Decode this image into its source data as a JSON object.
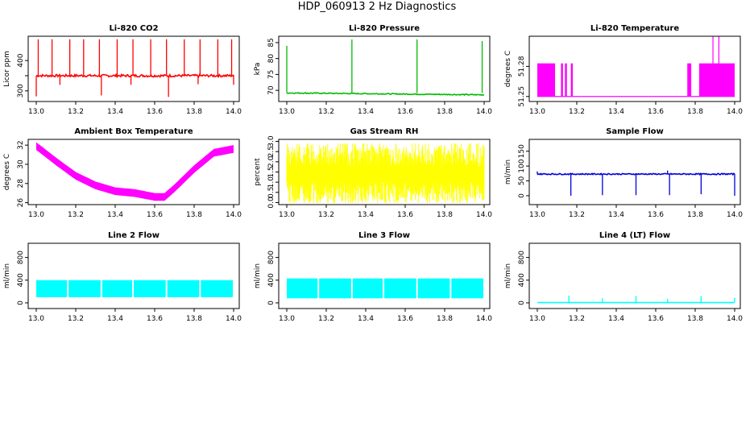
{
  "title": "HDP_060913  2 Hz Diagnostics",
  "chart_data": [
    {
      "type": "line",
      "title": "Li-820 CO2",
      "ylabel": "Licor ppm",
      "color": "#ff0000",
      "xlim": [
        13.0,
        14.0
      ],
      "ylim": [
        265,
        480
      ],
      "xticks": [
        "13.0",
        "13.2",
        "13.4",
        "13.6",
        "13.8",
        "14.0"
      ],
      "yticks": [
        300,
        350,
        400
      ],
      "yticklabels": [
        "300",
        "",
        "400"
      ],
      "baseline": 350,
      "noise": 4,
      "spikes_up": [
        [
          13.01,
          470
        ],
        [
          13.08,
          470
        ],
        [
          13.17,
          470
        ],
        [
          13.24,
          470
        ],
        [
          13.32,
          470
        ],
        [
          13.41,
          470
        ],
        [
          13.49,
          470
        ],
        [
          13.58,
          470
        ],
        [
          13.66,
          470
        ],
        [
          13.75,
          470
        ],
        [
          13.83,
          470
        ],
        [
          13.92,
          470
        ],
        [
          13.99,
          470
        ]
      ],
      "spikes_down": [
        [
          13.0,
          282
        ],
        [
          13.12,
          320
        ],
        [
          13.33,
          285
        ],
        [
          13.48,
          320
        ],
        [
          13.67,
          280
        ],
        [
          13.82,
          322
        ],
        [
          14.0,
          320
        ]
      ],
      "band": false
    },
    {
      "type": "line",
      "title": "Li-820 Pressure",
      "ylabel": "kPa",
      "color": "#00bb00",
      "xlim": [
        13.0,
        14.0
      ],
      "ylim": [
        66.5,
        87
      ],
      "xticks": [
        "13.0",
        "13.2",
        "13.4",
        "13.6",
        "13.8",
        "14.0"
      ],
      "yticks": [
        70,
        75,
        80,
        85
      ],
      "yticklabels": [
        "70",
        "75",
        "80",
        "85"
      ],
      "baseline_start": 69.2,
      "baseline_end": 68.6,
      "noise": 0.15,
      "spikes_up": [
        [
          13.0,
          84
        ],
        [
          13.33,
          86
        ],
        [
          13.66,
          86
        ],
        [
          13.99,
          85.5
        ]
      ],
      "spikes_down": [],
      "band": false
    },
    {
      "type": "line",
      "title": "Li-820 Temperature",
      "ylabel": "degrees C",
      "color": "#ff00ff",
      "xlim": [
        13.0,
        14.0
      ],
      "ylim": [
        51.245,
        51.31
      ],
      "xticks": [
        "13.0",
        "13.2",
        "13.4",
        "13.6",
        "13.8",
        "14.0"
      ],
      "yticks": [
        51.25,
        51.28
      ],
      "yticklabels": [
        "51.25",
        "51.28"
      ],
      "low": 51.25,
      "high": 51.283,
      "high_segments": [
        [
          13.0,
          13.09
        ],
        [
          13.12,
          13.13
        ],
        [
          13.14,
          13.15
        ],
        [
          13.17,
          13.18
        ],
        [
          13.76,
          13.78
        ],
        [
          13.82,
          14.0
        ]
      ],
      "peak_spikes": [
        [
          13.89,
          51.31
        ],
        [
          13.92,
          51.31
        ]
      ],
      "band": "square"
    },
    {
      "type": "line",
      "title": "Ambient Box Temperature",
      "ylabel": "degrees C",
      "color": "#ff00ff",
      "xlim": [
        13.0,
        14.0
      ],
      "ylim": [
        25.8,
        32.6
      ],
      "xticks": [
        "13.0",
        "13.2",
        "13.4",
        "13.6",
        "13.8",
        "14.0"
      ],
      "yticks": [
        26,
        28,
        30,
        32
      ],
      "yticklabels": [
        "26",
        "28",
        "30",
        "32"
      ],
      "curve": [
        [
          13.0,
          31.9
        ],
        [
          13.1,
          30.3
        ],
        [
          13.2,
          28.8
        ],
        [
          13.3,
          27.8
        ],
        [
          13.4,
          27.2
        ],
        [
          13.5,
          27.0
        ],
        [
          13.6,
          26.6
        ],
        [
          13.65,
          26.6
        ],
        [
          13.7,
          27.5
        ],
        [
          13.8,
          29.5
        ],
        [
          13.9,
          31.2
        ],
        [
          14.0,
          31.6
        ]
      ],
      "band_width": 0.8,
      "band": "curve"
    },
    {
      "type": "line",
      "title": "Gas Stream RH",
      "ylabel": "percent",
      "color": "#ffff00",
      "xlim": [
        13.0,
        14.0
      ],
      "ylim": [
        -0.1,
        3.1
      ],
      "xticks": [
        "13.0",
        "13.2",
        "13.4",
        "13.6",
        "13.8",
        "14.0"
      ],
      "yticks": [
        0.0,
        0.5,
        1.0,
        1.5,
        2.0,
        2.5,
        3.0
      ],
      "yticklabels": [
        "0.0",
        "0.5",
        "1.0",
        "1.5",
        "2.0",
        "2.5",
        "3.0"
      ],
      "center": 1.4,
      "spread": 1.4,
      "band": "noise"
    },
    {
      "type": "line",
      "title": "Sample Flow",
      "ylabel": "ml/min",
      "color": "#0000dd",
      "xlim": [
        13.0,
        14.0
      ],
      "ylim": [
        -30,
        190
      ],
      "xticks": [
        "13.0",
        "13.2",
        "13.4",
        "13.6",
        "13.8",
        "14.0"
      ],
      "yticks": [
        0,
        50,
        100,
        150
      ],
      "yticklabels": [
        "0",
        "50",
        "100",
        "150"
      ],
      "baseline": 73,
      "noise": 2,
      "spikes_up": [
        [
          13.0,
          82
        ],
        [
          13.66,
          85
        ]
      ],
      "spikes_down": [
        [
          13.17,
          0
        ],
        [
          13.33,
          2
        ],
        [
          13.5,
          2
        ],
        [
          13.67,
          2
        ],
        [
          13.83,
          5
        ],
        [
          14.0,
          0
        ]
      ],
      "band": false
    },
    {
      "type": "line",
      "title": "Line 2 Flow",
      "ylabel": "ml/min",
      "color": "#00ffff",
      "xlim": [
        13.0,
        14.0
      ],
      "ylim": [
        -100,
        1050
      ],
      "xticks": [
        "13.0",
        "13.2",
        "13.4",
        "13.6",
        "13.8",
        "14.0"
      ],
      "yticks": [
        0,
        400,
        800
      ],
      "yticklabels": [
        "0",
        "400",
        "800"
      ],
      "band_low": 100,
      "band_high": 400,
      "gaps": [
        13.16,
        13.33,
        13.49,
        13.66,
        13.83,
        14.0
      ],
      "band": "block"
    },
    {
      "type": "line",
      "title": "Line 3 Flow",
      "ylabel": "ml/min",
      "color": "#00ffff",
      "xlim": [
        13.0,
        14.0
      ],
      "ylim": [
        -100,
        1050
      ],
      "xticks": [
        "13.0",
        "13.2",
        "13.4",
        "13.6",
        "13.8",
        "14.0"
      ],
      "yticks": [
        0,
        400,
        800
      ],
      "yticklabels": [
        "0",
        "400",
        "800"
      ],
      "band_low": 80,
      "band_high": 430,
      "gaps": [
        13.16,
        13.33,
        13.49,
        13.66,
        13.83,
        14.0
      ],
      "band": "block"
    },
    {
      "type": "line",
      "title": "Line 4 (LT) Flow",
      "ylabel": "ml/min",
      "color": "#00ffff",
      "xlim": [
        13.0,
        14.0
      ],
      "ylim": [
        -100,
        1050
      ],
      "xticks": [
        "13.0",
        "13.2",
        "13.4",
        "13.6",
        "13.8",
        "14.0"
      ],
      "yticks": [
        0,
        400,
        800
      ],
      "yticklabels": [
        "0",
        "400",
        "800"
      ],
      "baseline": 5,
      "noise": 0,
      "spikes_up": [
        [
          13.16,
          130
        ],
        [
          13.33,
          80
        ],
        [
          13.5,
          120
        ],
        [
          13.66,
          70
        ],
        [
          13.83,
          120
        ],
        [
          14.0,
          90
        ]
      ],
      "spikes_down": [],
      "band": false
    }
  ]
}
